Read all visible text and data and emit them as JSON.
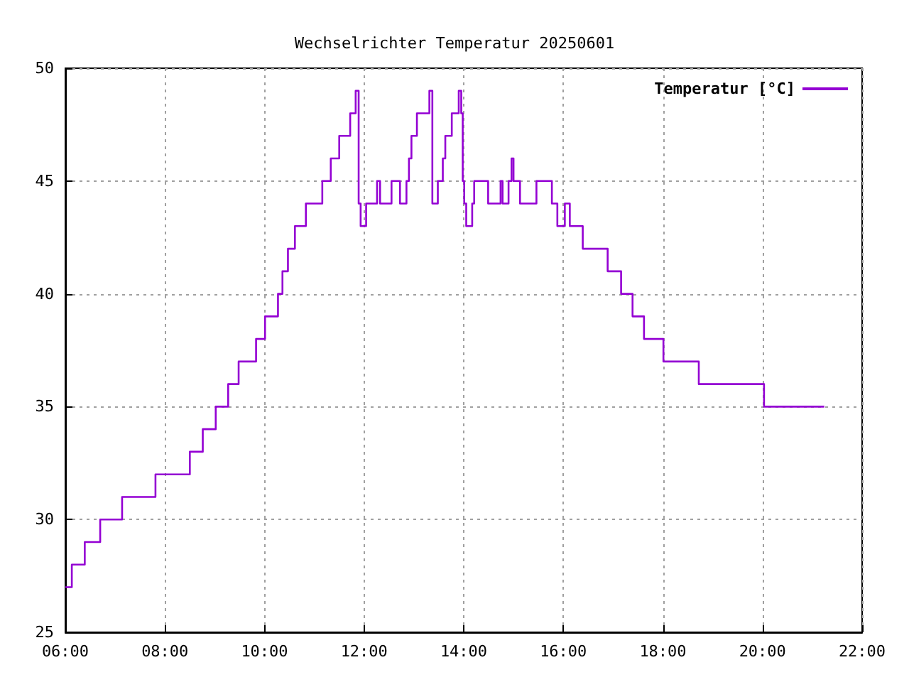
{
  "chart_data": {
    "type": "step",
    "title": "Wechselrichter Temperatur 20250601",
    "xlim": [
      6,
      22
    ],
    "xticks": [
      {
        "value": 6,
        "label": "06:00"
      },
      {
        "value": 8,
        "label": "08:00"
      },
      {
        "value": 10,
        "label": "10:00"
      },
      {
        "value": 12,
        "label": "12:00"
      },
      {
        "value": 14,
        "label": "14:00"
      },
      {
        "value": 16,
        "label": "16:00"
      },
      {
        "value": 18,
        "label": "18:00"
      },
      {
        "value": 20,
        "label": "20:00"
      },
      {
        "value": 22,
        "label": "22:00"
      }
    ],
    "ylim": [
      25,
      50
    ],
    "yticks": [
      25,
      30,
      35,
      40,
      45,
      50
    ],
    "grid": true,
    "legend": "top right",
    "marker": "none",
    "line_style": "solid",
    "series": [
      {
        "name": "Temperatur [°C]",
        "color": "#9400d3",
        "x": [
          6,
          6.13,
          6.39,
          6.7,
          7.14,
          7.81,
          8.5,
          8.76,
          9.02,
          9.27,
          9.48,
          9.83,
          10.01,
          10.27,
          10.36,
          10.47,
          10.61,
          10.83,
          11.16,
          11.33,
          11.5,
          11.72,
          11.83,
          11.89,
          11.93,
          12.04,
          12.26,
          12.32,
          12.55,
          12.72,
          12.85,
          12.9,
          12.95,
          13.06,
          13.31,
          13.37,
          13.48,
          13.58,
          13.63,
          13.76,
          13.9,
          13.95,
          13.98,
          14.01,
          14.05,
          14.17,
          14.21,
          14.49,
          14.74,
          14.78,
          14.9,
          14.96,
          15,
          15.13,
          15.46,
          15.77,
          15.88,
          16.03,
          16.13,
          16.39,
          16.89,
          17.16,
          17.39,
          17.62,
          18.01,
          18.72,
          20.03,
          21.24
        ],
        "values": [
          27,
          28,
          29,
          30,
          31,
          32,
          33,
          34,
          35,
          36,
          37,
          38,
          39,
          40,
          41,
          42,
          43,
          44,
          45,
          46,
          47,
          48,
          49,
          44,
          43,
          44,
          45,
          44,
          45,
          44,
          45,
          46,
          47,
          48,
          49,
          44,
          45,
          46,
          47,
          48,
          49,
          48,
          45,
          44,
          43,
          44,
          45,
          44,
          45,
          44,
          45,
          46,
          45,
          44,
          45,
          44,
          43,
          44,
          43,
          42,
          41,
          40,
          39,
          38,
          37,
          36,
          35,
          35
        ]
      }
    ]
  }
}
